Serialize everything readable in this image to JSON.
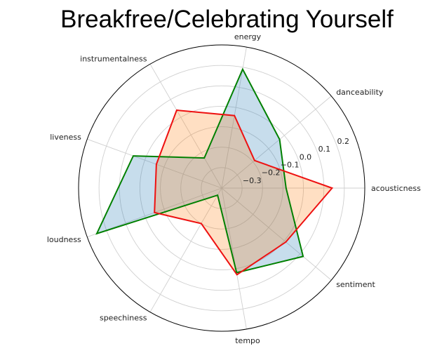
{
  "chart_data": {
    "type": "radar",
    "title": "Breakfree/Celebrating Yourself",
    "axes": [
      "acousticness",
      "danceability",
      "energy",
      "instrumentalness",
      "liveness",
      "loudness",
      "speechiness",
      "tempo",
      "sentiment"
    ],
    "rlim": [
      -0.4,
      0.3
    ],
    "r_ticks": [
      -0.3,
      -0.2,
      -0.1,
      0.0,
      0.1,
      0.2
    ],
    "r_tick_labels": [
      "−0.3",
      "−0.2",
      "−0.1",
      "0.0",
      "0.1",
      "0.2"
    ],
    "grid": true,
    "series": [
      {
        "color": "#008000",
        "fill": "#1f77b4",
        "values": [
          -0.085,
          -0.03,
          0.19,
          -0.23,
          0.06,
          0.25,
          -0.36,
          0.02,
          0.12
        ]
      },
      {
        "color": "#ee1111",
        "fill": "#ff7f0e",
        "values": [
          0.14,
          -0.19,
          -0.04,
          0.04,
          -0.06,
          -0.05,
          -0.2,
          0.03,
          0.01
        ]
      }
    ]
  }
}
